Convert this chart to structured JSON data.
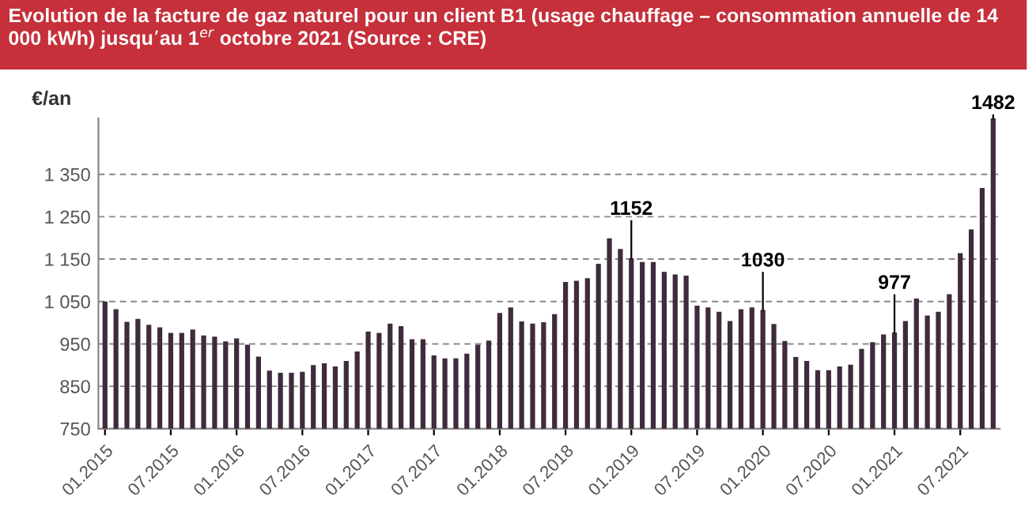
{
  "chart_data": {
    "type": "bar",
    "title": "Evolution de la facture de gaz naturel pour un client B1 (usage chauffage – consommation annuelle de 14 000 kWh) jusqu’au 1$^{er}$ octobre 2021 (Source : CRE)",
    "ylabel": "€/an",
    "categories": [
      "01.2015",
      null,
      null,
      null,
      null,
      null,
      "07.2015",
      null,
      null,
      null,
      null,
      null,
      "01.2016",
      null,
      null,
      null,
      null,
      null,
      "07.2016",
      null,
      null,
      null,
      null,
      null,
      "01.2017",
      null,
      null,
      null,
      null,
      null,
      "07.2017",
      null,
      null,
      null,
      null,
      null,
      "01.2018",
      null,
      null,
      null,
      null,
      null,
      "07.2018",
      null,
      null,
      null,
      null,
      null,
      "01.2019",
      null,
      null,
      null,
      null,
      null,
      "07.2019",
      null,
      null,
      null,
      null,
      null,
      "01.2020",
      null,
      null,
      null,
      null,
      null,
      "07.2020",
      null,
      null,
      null,
      null,
      null,
      "01.2021",
      null,
      null,
      null,
      null,
      null,
      "07.2021",
      null,
      null,
      null
    ],
    "values": [
      1050,
      1032,
      1002,
      1009,
      995,
      989,
      976,
      976,
      984,
      970,
      967,
      956,
      963,
      948,
      920,
      887,
      882,
      882,
      884,
      900,
      904,
      897,
      910,
      932,
      979,
      976,
      998,
      992,
      961,
      961,
      923,
      916,
      916,
      927,
      948,
      958,
      1023,
      1036,
      1003,
      998,
      1001,
      1020,
      1096,
      1099,
      1105,
      1139,
      1199,
      1174,
      1152,
      1143,
      1143,
      1120,
      1114,
      1111,
      1040,
      1036,
      1026,
      1004,
      1032,
      1036,
      1030,
      997,
      957,
      919,
      910,
      888,
      888,
      897,
      901,
      938,
      954,
      972,
      977,
      1004,
      1057,
      1017,
      1026,
      1067,
      1164,
      1220,
      1318,
      1482
    ],
    "value_labels": [
      null,
      null,
      null,
      null,
      null,
      null,
      null,
      null,
      null,
      null,
      null,
      null,
      null,
      null,
      null,
      null,
      null,
      null,
      null,
      null,
      null,
      null,
      null,
      null,
      null,
      null,
      null,
      null,
      null,
      null,
      null,
      null,
      null,
      null,
      null,
      null,
      null,
      null,
      null,
      null,
      null,
      null,
      null,
      null,
      null,
      null,
      null,
      null,
      "1152",
      null,
      null,
      null,
      null,
      null,
      null,
      null,
      null,
      null,
      null,
      null,
      "1030",
      null,
      null,
      null,
      null,
      null,
      null,
      null,
      null,
      null,
      null,
      null,
      "977",
      null,
      null,
      null,
      null,
      null,
      null,
      null,
      null,
      "1482"
    ],
    "color": "#3f2b3d",
    "ylim": [
      750,
      1482
    ],
    "yticks": [
      750,
      850,
      950,
      {
        "value": 1050,
        "label": "1 050"
      },
      {
        "value": 1150,
        "label": "1 150"
      },
      {
        "value": 1250,
        "label": "1 250"
      },
      {
        "value": 1350,
        "label": "1 350"
      }
    ],
    "grid": "y",
    "legend": false
  }
}
